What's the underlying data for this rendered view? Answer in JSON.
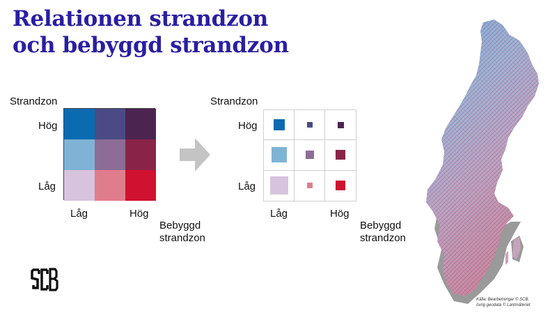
{
  "title": {
    "line1": "Relationen strandzon",
    "line2": "och bebyggd strandzon"
  },
  "left_legend": {
    "y_axis_label": "Strandzon",
    "y_high": "Hög",
    "y_low": "Låg",
    "x_low": "Låg",
    "x_high": "Hög",
    "x_axis_label_line1": "Bebyggd",
    "x_axis_label_line2": "strandzon",
    "cells": [
      [
        "#0a6bb0",
        "#4b4a86",
        "#4b2550"
      ],
      [
        "#7fb3d6",
        "#8d6d95",
        "#8a2348"
      ],
      [
        "#d8c3df",
        "#e07d8c",
        "#d0112f"
      ]
    ]
  },
  "right_legend": {
    "y_axis_label": "Strandzon",
    "y_high": "Hög",
    "y_low": "Låg",
    "x_low": "Låg",
    "x_high": "Hög",
    "x_axis_label_line1": "Bebyggd",
    "x_axis_label_line2": "strandzon",
    "symbols": [
      [
        {
          "color": "#0a6bb0",
          "relative_size": 0.6
        },
        {
          "color": "#4b4a86",
          "relative_size": 0.3
        },
        {
          "color": "#4b2550",
          "relative_size": 0.35
        }
      ],
      [
        {
          "color": "#7fb3d6",
          "relative_size": 0.85
        },
        {
          "color": "#8d6d95",
          "relative_size": 0.45
        },
        {
          "color": "#8a2348",
          "relative_size": 0.55
        }
      ],
      [
        {
          "color": "#d8c3df",
          "relative_size": 1.0
        },
        {
          "color": "#e07d8c",
          "relative_size": 0.3
        },
        {
          "color": "#d0112f",
          "relative_size": 0.55
        }
      ]
    ]
  },
  "arrow_color": "#c4c4c4",
  "logo": {
    "text": "SCB"
  },
  "map": {
    "subject": "sweden-map",
    "land_color": "#b9bfd0",
    "shadow_color": "#9a9a9a"
  },
  "credit": {
    "line1": "Källa: Bearbetningar © SCB,",
    "line2": "övrig geodata © Lantmäteriet"
  }
}
